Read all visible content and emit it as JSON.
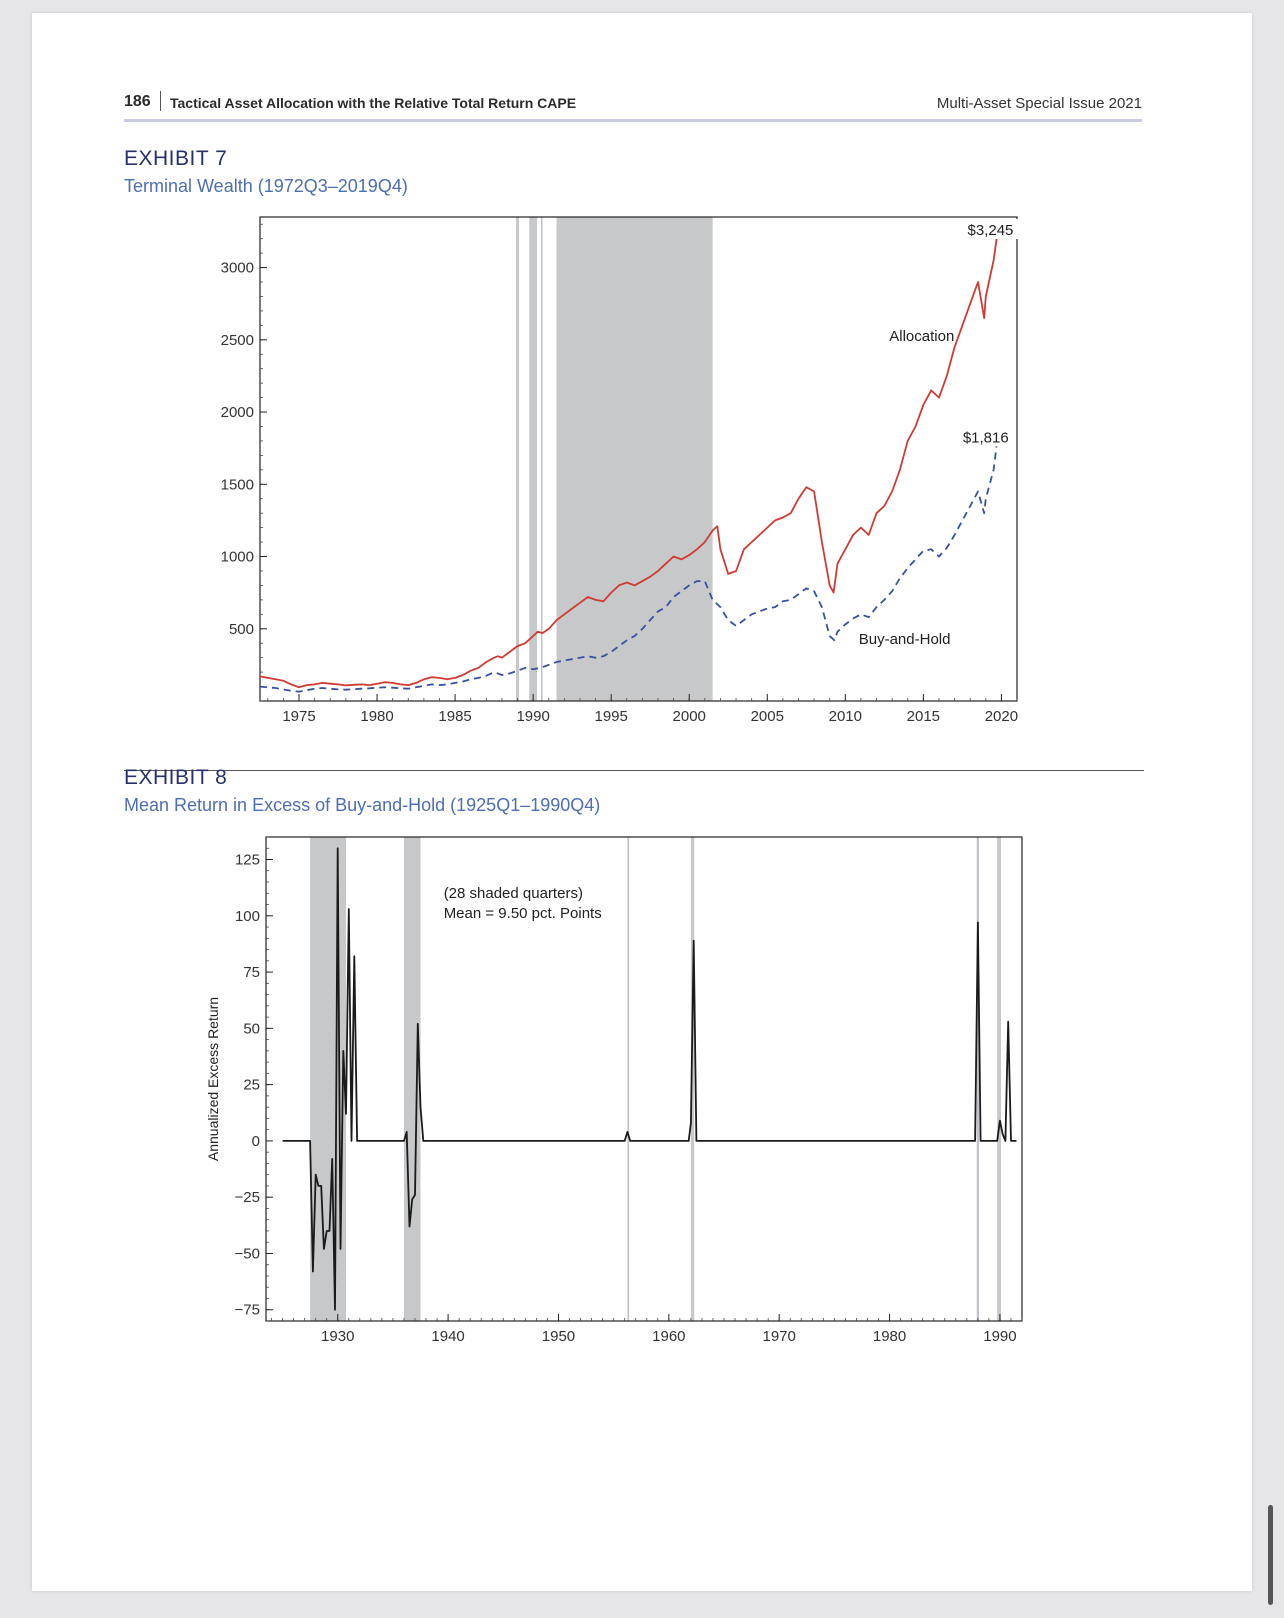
{
  "header": {
    "page_number": "186",
    "running_title": "Tactical Asset Allocation with the Relative Total Return CAPE",
    "issue": "Multi-Asset Special Issue 2021"
  },
  "exhibit7": {
    "label": "EXHIBIT 7",
    "title": "Terminal Wealth (1972Q3–2019Q4)"
  },
  "exhibit8": {
    "label": "EXHIBIT 8",
    "title": "Mean Return in Excess of Buy-and-Hold (1925Q1–1990Q4)"
  },
  "chart_data": [
    {
      "type": "line",
      "title": "Terminal Wealth (1972Q3–2019Q4)",
      "xlabel": "",
      "ylabel": "",
      "xlim": [
        1972.5,
        2021.0
      ],
      "ylim": [
        0,
        3350
      ],
      "x_ticks": [
        1975,
        1980,
        1985,
        1990,
        1995,
        2000,
        2005,
        2010,
        2015,
        2020
      ],
      "y_ticks": [
        500,
        1000,
        1500,
        2000,
        2500,
        3000
      ],
      "shaded_periods": [
        [
          1988.9,
          1989.1
        ],
        [
          1989.75,
          1990.25
        ],
        [
          1990.5,
          1990.6
        ],
        [
          1991.5,
          2001.5
        ]
      ],
      "series": [
        {
          "name": "Allocation",
          "color": "#d03a33",
          "style": "solid",
          "end_label": "$3,245",
          "points": [
            [
              1972.5,
              170
            ],
            [
              1973,
              160
            ],
            [
              1973.5,
              150
            ],
            [
              1974,
              140
            ],
            [
              1974.5,
              115
            ],
            [
              1975,
              95
            ],
            [
              1975.5,
              110
            ],
            [
              1976,
              115
            ],
            [
              1976.5,
              125
            ],
            [
              1977,
              120
            ],
            [
              1977.5,
              115
            ],
            [
              1978,
              108
            ],
            [
              1978.5,
              112
            ],
            [
              1979,
              115
            ],
            [
              1979.5,
              110
            ],
            [
              1980,
              120
            ],
            [
              1980.5,
              130
            ],
            [
              1981,
              125
            ],
            [
              1981.5,
              115
            ],
            [
              1982,
              110
            ],
            [
              1982.5,
              125
            ],
            [
              1983,
              150
            ],
            [
              1983.5,
              165
            ],
            [
              1984,
              160
            ],
            [
              1984.5,
              150
            ],
            [
              1985,
              160
            ],
            [
              1985.5,
              180
            ],
            [
              1986,
              210
            ],
            [
              1986.5,
              230
            ],
            [
              1987,
              270
            ],
            [
              1987.5,
              300
            ],
            [
              1987.75,
              310
            ],
            [
              1988,
              300
            ],
            [
              1988.5,
              340
            ],
            [
              1989,
              380
            ],
            [
              1989.5,
              400
            ],
            [
              1990,
              450
            ],
            [
              1990.3,
              480
            ],
            [
              1990.6,
              470
            ],
            [
              1991,
              500
            ],
            [
              1991.5,
              560
            ],
            [
              1992,
              600
            ],
            [
              1992.5,
              640
            ],
            [
              1993,
              680
            ],
            [
              1993.5,
              720
            ],
            [
              1994,
              700
            ],
            [
              1994.5,
              690
            ],
            [
              1995,
              750
            ],
            [
              1995.5,
              800
            ],
            [
              1996,
              820
            ],
            [
              1996.5,
              800
            ],
            [
              1997,
              830
            ],
            [
              1997.5,
              860
            ],
            [
              1998,
              900
            ],
            [
              1998.5,
              950
            ],
            [
              1999,
              1000
            ],
            [
              1999.5,
              980
            ],
            [
              2000,
              1010
            ],
            [
              2000.5,
              1050
            ],
            [
              2001,
              1100
            ],
            [
              2001.5,
              1180
            ],
            [
              2001.8,
              1210
            ],
            [
              2002,
              1050
            ],
            [
              2002.5,
              880
            ],
            [
              2003,
              900
            ],
            [
              2003.5,
              1050
            ],
            [
              2004,
              1100
            ],
            [
              2004.5,
              1150
            ],
            [
              2005,
              1200
            ],
            [
              2005.5,
              1250
            ],
            [
              2006,
              1270
            ],
            [
              2006.5,
              1300
            ],
            [
              2007,
              1400
            ],
            [
              2007.5,
              1480
            ],
            [
              2008,
              1450
            ],
            [
              2008.5,
              1100
            ],
            [
              2009,
              800
            ],
            [
              2009.25,
              750
            ],
            [
              2009.5,
              950
            ],
            [
              2010,
              1050
            ],
            [
              2010.5,
              1150
            ],
            [
              2011,
              1200
            ],
            [
              2011.5,
              1150
            ],
            [
              2012,
              1300
            ],
            [
              2012.5,
              1350
            ],
            [
              2013,
              1450
            ],
            [
              2013.5,
              1600
            ],
            [
              2014,
              1800
            ],
            [
              2014.5,
              1900
            ],
            [
              2015,
              2050
            ],
            [
              2015.5,
              2150
            ],
            [
              2016,
              2100
            ],
            [
              2016.5,
              2250
            ],
            [
              2017,
              2450
            ],
            [
              2017.5,
              2600
            ],
            [
              2018,
              2750
            ],
            [
              2018.5,
              2900
            ],
            [
              2018.9,
              2650
            ],
            [
              2019,
              2800
            ],
            [
              2019.5,
              3050
            ],
            [
              2019.75,
              3245
            ]
          ]
        },
        {
          "name": "Buy-and-Hold",
          "color": "#3950a0",
          "style": "dashed",
          "end_label": "$1,816",
          "points": [
            [
              1972.5,
              100
            ],
            [
              1973,
              95
            ],
            [
              1973.5,
              90
            ],
            [
              1974,
              80
            ],
            [
              1974.5,
              70
            ],
            [
              1975,
              65
            ],
            [
              1975.5,
              75
            ],
            [
              1976,
              85
            ],
            [
              1976.5,
              90
            ],
            [
              1977,
              85
            ],
            [
              1977.5,
              80
            ],
            [
              1978,
              78
            ],
            [
              1978.5,
              82
            ],
            [
              1979,
              85
            ],
            [
              1979.5,
              88
            ],
            [
              1980,
              92
            ],
            [
              1980.5,
              95
            ],
            [
              1981,
              92
            ],
            [
              1981.5,
              88
            ],
            [
              1982,
              85
            ],
            [
              1982.5,
              95
            ],
            [
              1983,
              105
            ],
            [
              1983.5,
              115
            ],
            [
              1984,
              110
            ],
            [
              1984.5,
              115
            ],
            [
              1985,
              125
            ],
            [
              1985.5,
              135
            ],
            [
              1986,
              150
            ],
            [
              1986.5,
              160
            ],
            [
              1987,
              175
            ],
            [
              1987.5,
              200
            ],
            [
              1988,
              180
            ],
            [
              1988.5,
              190
            ],
            [
              1989,
              210
            ],
            [
              1989.5,
              230
            ],
            [
              1990,
              220
            ],
            [
              1990.5,
              230
            ],
            [
              1991,
              250
            ],
            [
              1991.5,
              270
            ],
            [
              1992,
              280
            ],
            [
              1992.5,
              290
            ],
            [
              1993,
              300
            ],
            [
              1993.5,
              310
            ],
            [
              1994,
              300
            ],
            [
              1994.5,
              310
            ],
            [
              1995,
              340
            ],
            [
              1995.5,
              380
            ],
            [
              1996,
              420
            ],
            [
              1996.5,
              450
            ],
            [
              1997,
              500
            ],
            [
              1997.5,
              560
            ],
            [
              1998,
              620
            ],
            [
              1998.5,
              650
            ],
            [
              1999,
              720
            ],
            [
              1999.5,
              760
            ],
            [
              2000,
              800
            ],
            [
              2000.5,
              830
            ],
            [
              2001,
              830
            ],
            [
              2001.5,
              700
            ],
            [
              2002,
              650
            ],
            [
              2002.5,
              560
            ],
            [
              2003,
              520
            ],
            [
              2003.5,
              560
            ],
            [
              2004,
              600
            ],
            [
              2004.5,
              620
            ],
            [
              2005,
              640
            ],
            [
              2005.5,
              650
            ],
            [
              2006,
              690
            ],
            [
              2006.5,
              700
            ],
            [
              2007,
              740
            ],
            [
              2007.5,
              780
            ],
            [
              2008,
              760
            ],
            [
              2008.5,
              650
            ],
            [
              2009,
              450
            ],
            [
              2009.3,
              420
            ],
            [
              2009.5,
              480
            ],
            [
              2010,
              530
            ],
            [
              2010.5,
              570
            ],
            [
              2011,
              600
            ],
            [
              2011.5,
              580
            ],
            [
              2012,
              650
            ],
            [
              2012.5,
              700
            ],
            [
              2013,
              760
            ],
            [
              2013.5,
              850
            ],
            [
              2014,
              920
            ],
            [
              2014.5,
              980
            ],
            [
              2015,
              1040
            ],
            [
              2015.5,
              1050
            ],
            [
              2016,
              1000
            ],
            [
              2016.5,
              1060
            ],
            [
              2017,
              1150
            ],
            [
              2017.5,
              1250
            ],
            [
              2018,
              1350
            ],
            [
              2018.5,
              1450
            ],
            [
              2018.9,
              1300
            ],
            [
              2019,
              1400
            ],
            [
              2019.5,
              1600
            ],
            [
              2019.75,
              1816
            ]
          ]
        }
      ],
      "annotations": [
        {
          "text": "Allocation",
          "x": 2014.9,
          "y": 2525
        },
        {
          "text": "Buy-and-Hold",
          "x": 2013.8,
          "y": 430
        },
        {
          "text": "$3,245",
          "x": 2019.3,
          "y": 3260
        },
        {
          "text": "$1,816",
          "x": 2019.0,
          "y": 1825
        }
      ]
    },
    {
      "type": "line",
      "title": "Mean Return in Excess of Buy-and-Hold (1925Q1–1990Q4)",
      "xlabel": "",
      "ylabel": "Annualized Excess Return",
      "xlim": [
        1923.5,
        1992.0
      ],
      "ylim": [
        -80,
        135
      ],
      "x_ticks": [
        1930,
        1940,
        1950,
        1960,
        1970,
        1980,
        1990
      ],
      "y_ticks": [
        -75,
        -50,
        -25,
        0,
        25,
        50,
        75,
        100,
        125
      ],
      "shaded_periods": [
        [
          1927.5,
          1930.75
        ],
        [
          1936,
          1937.5
        ],
        [
          1956.25,
          1956.4
        ],
        [
          1962,
          1962.3
        ],
        [
          1987.9,
          1988.1
        ],
        [
          1989.75,
          1990.1
        ]
      ],
      "annotation": {
        "lines": [
          "(28 shaded quarters)",
          "Mean = 9.50 pct. Points"
        ],
        "x": 1939.6,
        "y": 108
      },
      "series": [
        {
          "name": "",
          "color": "#1a1a1a",
          "style": "solid",
          "points": [
            [
              1925,
              0
            ],
            [
              1927.5,
              0
            ],
            [
              1927.75,
              -58
            ],
            [
              1928,
              -15
            ],
            [
              1928.25,
              -20
            ],
            [
              1928.5,
              -20
            ],
            [
              1928.75,
              -48
            ],
            [
              1929,
              -40
            ],
            [
              1929.25,
              -40
            ],
            [
              1929.5,
              -8
            ],
            [
              1929.75,
              -75
            ],
            [
              1930,
              130
            ],
            [
              1930.25,
              -48
            ],
            [
              1930.5,
              40
            ],
            [
              1930.75,
              12
            ],
            [
              1931,
              103
            ],
            [
              1931.25,
              0
            ],
            [
              1931.5,
              82
            ],
            [
              1931.75,
              0
            ],
            [
              1936,
              0
            ],
            [
              1936.25,
              4
            ],
            [
              1936.5,
              -38
            ],
            [
              1936.75,
              -26
            ],
            [
              1937,
              -24
            ],
            [
              1937.25,
              52
            ],
            [
              1937.5,
              15
            ],
            [
              1937.75,
              0
            ],
            [
              1956,
              0
            ],
            [
              1956.25,
              4
            ],
            [
              1956.5,
              0
            ],
            [
              1961.8,
              0
            ],
            [
              1962,
              8
            ],
            [
              1962.25,
              89
            ],
            [
              1962.5,
              0
            ],
            [
              1987.75,
              0
            ],
            [
              1988,
              97
            ],
            [
              1988.25,
              0
            ],
            [
              1989.75,
              0
            ],
            [
              1990,
              9
            ],
            [
              1990.25,
              3
            ],
            [
              1990.5,
              0
            ],
            [
              1990.75,
              53
            ],
            [
              1991,
              0
            ],
            [
              1991.5,
              0
            ]
          ]
        }
      ]
    }
  ]
}
